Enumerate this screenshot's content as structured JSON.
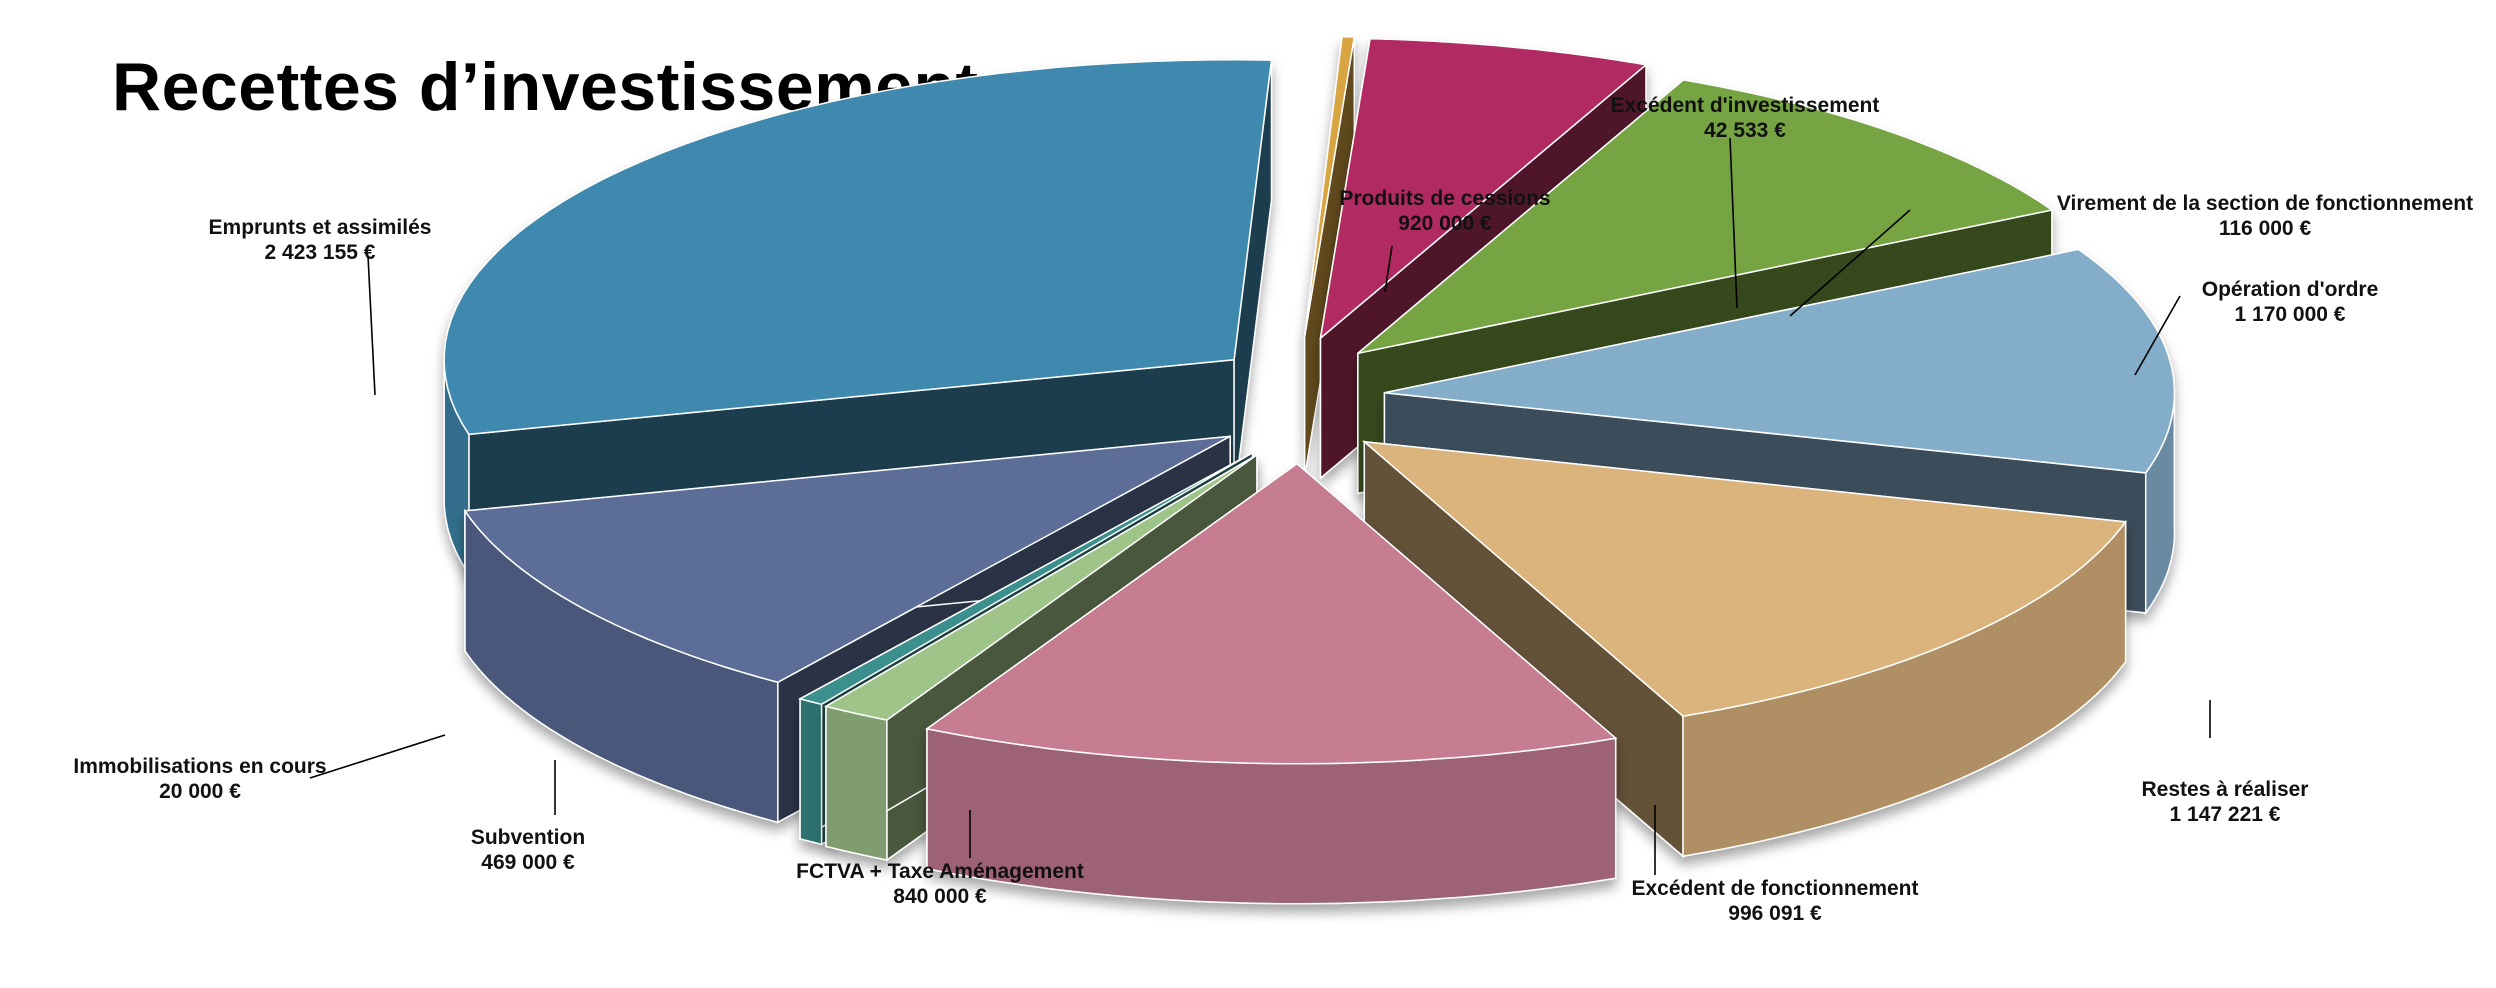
{
  "chart_data": {
    "type": "pie",
    "title": "Recettes d’investissement",
    "unit": "€",
    "slices": [
      {
        "label": "Emprunts et assimilés",
        "value_text": "2 423 155 €",
        "value": 2423155,
        "color": "#3f89ae"
      },
      {
        "label": "Immobilisations en cours",
        "value_text": "20 000 €",
        "value": 20000,
        "color": "#d8a542"
      },
      {
        "label": "Subvention",
        "value_text": "469 000 €",
        "value": 469000,
        "color": "#b12a62"
      },
      {
        "label": "FCTVA + Taxe Aménagement",
        "value_text": "840 000 €",
        "value": 840000,
        "color": "#77a443"
      },
      {
        "label": "Excédent de fonctionnement",
        "value_text": "996 091 €",
        "value": 996091,
        "color": "#84adc9"
      },
      {
        "label": "Restes à réaliser",
        "value_text": "1 147 221 €",
        "value": 1147221,
        "color": "#dbb37c"
      },
      {
        "label": "Opération d'ordre",
        "value_text": "1 170 000 €",
        "value": 1170000,
        "color": "#c67b91"
      },
      {
        "label": "Virement de la section de fonctionnement",
        "value_text": "116 000 €",
        "value": 116000,
        "color": "#9fc48a"
      },
      {
        "label": "Excédent d'investissement",
        "value_text": "42 533 €",
        "value": 42533,
        "color": "#3a8f8c"
      },
      {
        "label": "Produits de cessions",
        "value_text": "920 000 €",
        "value": 920000,
        "color": "#5c6e98"
      }
    ]
  }
}
